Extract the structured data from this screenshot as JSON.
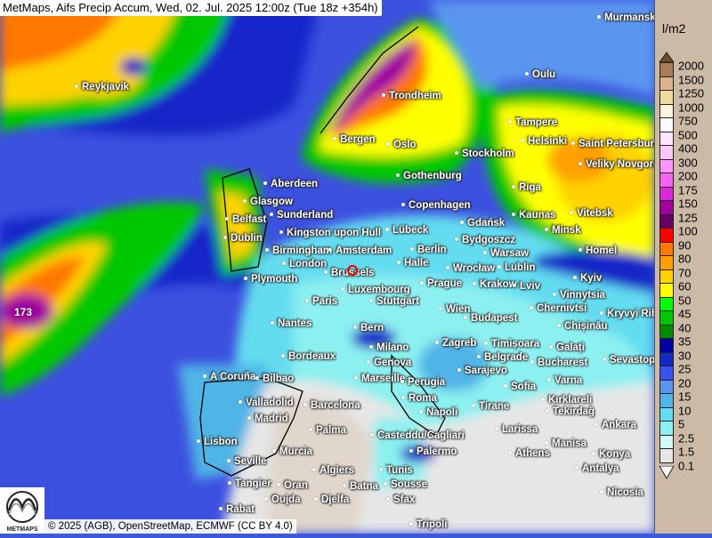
{
  "title": "MetMaps, Aifs Precip Accum, Wed, 02. Jul. 2025 12:00z (Tue 18z +354h)",
  "footer": "© 2025 (AGB), OpenStreetMap, ECMWF (CC BY 4.0)",
  "logo_text": "METMAPS",
  "max_value_label": "173",
  "legend": {
    "unit": "l/m2",
    "labels": [
      "2000",
      "1500",
      "1250",
      "1000",
      "750",
      "500",
      "400",
      "300",
      "200",
      "175",
      "150",
      "125",
      "100",
      "90",
      "80",
      "70",
      "60",
      "50",
      "45",
      "40",
      "35",
      "30",
      "25",
      "20",
      "15",
      "10",
      "5",
      "2.5",
      "1.5",
      "0.1"
    ],
    "top_arrow_color": "#6e4a28",
    "bottom_arrow_color": "#ffffff",
    "colors": [
      "#a67c5a",
      "#dcb48e",
      "#f0dca0",
      "#fcf4dc",
      "#fffaff",
      "#ffe6ff",
      "#ffc8ff",
      "#ff96ff",
      "#f064f0",
      "#dc28dc",
      "#a000a0",
      "#640064",
      "#ff0000",
      "#ff7800",
      "#ffa000",
      "#ffd200",
      "#ffff00",
      "#00ff00",
      "#00c800",
      "#008c00",
      "#0000a0",
      "#1428c8",
      "#3c50f0",
      "#5a96f0",
      "#50b4e6",
      "#64dcf0",
      "#8cf0f0",
      "#d2fafa",
      "#e6e6e6"
    ]
  },
  "cities": [
    "Murmansk",
    "Reykjavik",
    "Oulu",
    "Trondheim",
    "Tampere",
    "Bergen",
    "Oslo",
    "Helsinki",
    "Saint Petersburg",
    "Stockholm",
    "Veliky Novgorod",
    "Aberdeen",
    "Gothenburg",
    "Riga",
    "Glasgow",
    "Copenhagen",
    "Vitebsk",
    "Sunderland",
    "Belfast",
    "Kaunas",
    "Gdańsk",
    "Minsk",
    "Dublin",
    "Kingston upon Hull",
    "Lübeck",
    "Bydgoszcz",
    "Homel",
    "Birmingham",
    "Amsterdam",
    "Berlin",
    "Warsaw",
    "London",
    "Halle",
    "Wrocław",
    "Lublin",
    "Brussels",
    "Plymouth",
    "Luxembourg",
    "Prague",
    "Krakow",
    "Lviv",
    "Kyiv",
    "Paris",
    "Stuttgart",
    "Vinnytsia",
    "Wien",
    "Chernivtsi",
    "Kryvyi Rih",
    "Budapest",
    "Nantes",
    "Bern",
    "Chișinău",
    "Milano",
    "Zagreb",
    "Timișoara",
    "Galați",
    "Bordeaux",
    "Genova",
    "Belgrade",
    "Bucharest",
    "Sevastopol",
    "Sarajevo",
    "Marseille",
    "A Coruña",
    "Bilbao",
    "Perugia",
    "Varna",
    "Sofia",
    "Roma",
    "Kırklareli",
    "Valladolid",
    "Barcelona",
    "Napoli",
    "Tirane",
    "Tekirdağ",
    "Madrid",
    "Palma",
    "Ankara",
    "Larissa",
    "Casteddu/Cagliari",
    "Lisbon",
    "Manisa",
    "Konya",
    "Murcia",
    "Palermo",
    "Athens",
    "Seville",
    "Antalya",
    "Algiers",
    "Tunis",
    "Tangier",
    "Oran",
    "Batna",
    "Sousse",
    "Nicosia",
    "Oujda",
    "Djelfa",
    "Sfax",
    "Rabat",
    "Tripoli"
  ]
}
